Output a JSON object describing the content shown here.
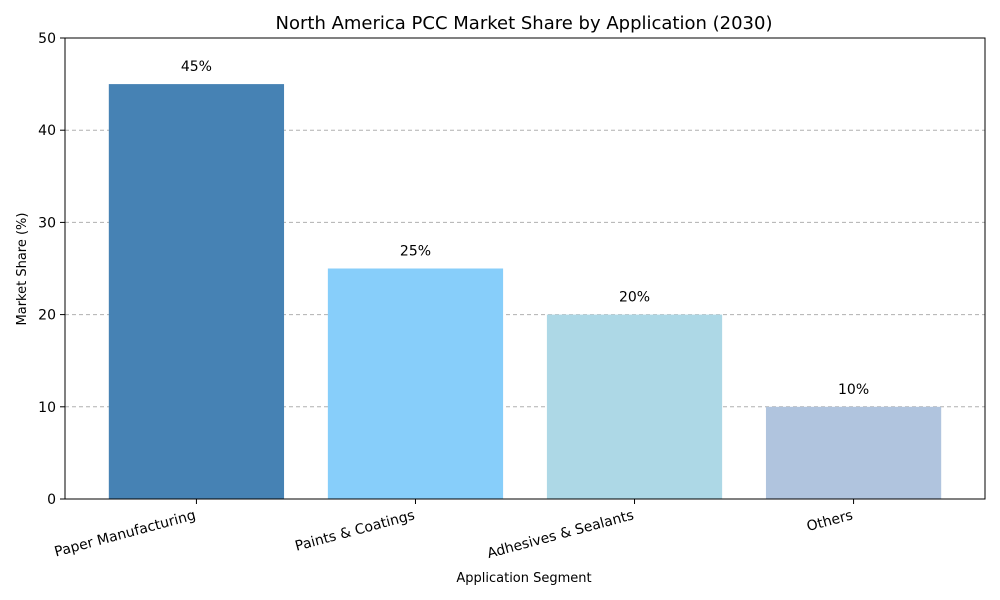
{
  "chart_data": {
    "type": "bar",
    "title": "North America PCC Market Share by Application (2030)",
    "xlabel": "Application Segment",
    "ylabel": "Market Share (%)",
    "categories": [
      "Paper Manufacturing",
      "Paints & Coatings",
      "Adhesives & Sealants",
      "Others"
    ],
    "values": [
      45,
      25,
      20,
      10
    ],
    "data_labels": [
      "45%",
      "25%",
      "20%",
      "10%"
    ],
    "colors": [
      "#4682B4",
      "#87CEFA",
      "#ADD8E6",
      "#B0C4DE"
    ],
    "ylim": [
      0,
      50
    ],
    "yticks": [
      0,
      10,
      20,
      30,
      40,
      50
    ],
    "grid": "y-dashed",
    "legend": "none"
  }
}
